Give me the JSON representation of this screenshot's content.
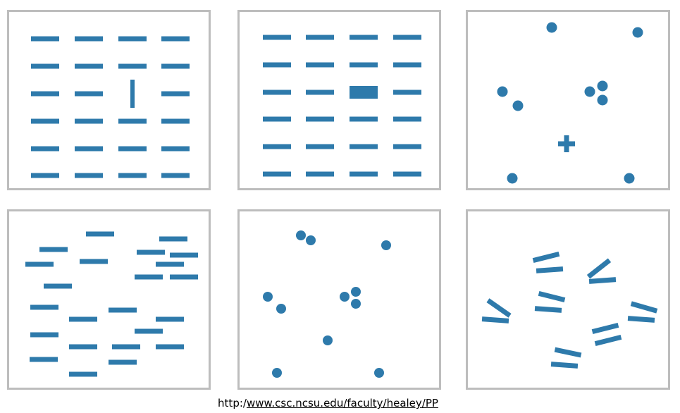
{
  "colors": {
    "mark": "#2e7aab",
    "frame": "#bdbdbd"
  },
  "caption": {
    "prefix": "http:/",
    "link": "www.csc.ncsu.edu/faculty/healey/PP"
  }
}
